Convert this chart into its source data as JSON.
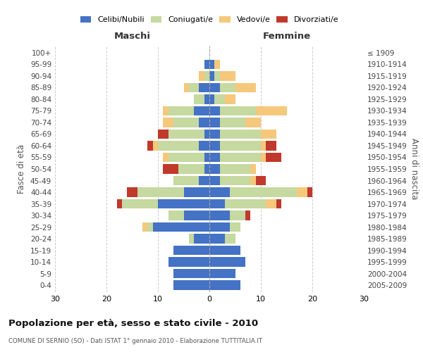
{
  "age_groups": [
    "0-4",
    "5-9",
    "10-14",
    "15-19",
    "20-24",
    "25-29",
    "30-34",
    "35-39",
    "40-44",
    "45-49",
    "50-54",
    "55-59",
    "60-64",
    "65-69",
    "70-74",
    "75-79",
    "80-84",
    "85-89",
    "90-94",
    "95-99",
    "100+"
  ],
  "birth_years": [
    "2005-2009",
    "2000-2004",
    "1995-1999",
    "1990-1994",
    "1985-1989",
    "1980-1984",
    "1975-1979",
    "1970-1974",
    "1965-1969",
    "1960-1964",
    "1955-1959",
    "1950-1954",
    "1945-1949",
    "1940-1944",
    "1935-1939",
    "1930-1934",
    "1925-1929",
    "1920-1924",
    "1915-1919",
    "1910-1914",
    "≤ 1909"
  ],
  "male_celibe": [
    7,
    7,
    8,
    7,
    3,
    11,
    5,
    10,
    5,
    2,
    1,
    1,
    2,
    1,
    2,
    3,
    1,
    2,
    0,
    1,
    0
  ],
  "male_coniugato": [
    0,
    0,
    0,
    0,
    1,
    1,
    3,
    7,
    9,
    5,
    5,
    7,
    8,
    7,
    5,
    5,
    2,
    2,
    1,
    0,
    0
  ],
  "male_vedovo": [
    0,
    0,
    0,
    0,
    0,
    1,
    0,
    0,
    0,
    0,
    0,
    1,
    1,
    0,
    2,
    1,
    0,
    1,
    1,
    0,
    0
  ],
  "male_divorziato": [
    0,
    0,
    0,
    0,
    0,
    0,
    0,
    1,
    2,
    0,
    3,
    0,
    1,
    2,
    0,
    0,
    0,
    0,
    0,
    0,
    0
  ],
  "female_celibe": [
    6,
    5,
    7,
    6,
    3,
    4,
    4,
    3,
    4,
    2,
    2,
    2,
    2,
    2,
    2,
    2,
    1,
    2,
    1,
    1,
    0
  ],
  "female_coniugato": [
    0,
    0,
    0,
    0,
    2,
    2,
    3,
    8,
    13,
    6,
    6,
    8,
    8,
    8,
    5,
    7,
    2,
    3,
    1,
    0,
    0
  ],
  "female_vedovo": [
    0,
    0,
    0,
    0,
    0,
    0,
    0,
    2,
    2,
    1,
    1,
    1,
    1,
    3,
    3,
    6,
    2,
    4,
    3,
    1,
    0
  ],
  "female_divorziato": [
    0,
    0,
    0,
    0,
    0,
    0,
    1,
    1,
    1,
    2,
    0,
    3,
    2,
    0,
    0,
    0,
    0,
    0,
    0,
    0,
    0
  ],
  "color_celibe": "#4472c4",
  "color_coniugato": "#c5d9a0",
  "color_vedovo": "#f5c87c",
  "color_divorziato": "#c0392b",
  "title": "Popolazione per età, sesso e stato civile - 2010",
  "subtitle": "COMUNE DI SERNIO (SO) - Dati ISTAT 1° gennaio 2010 - Elaborazione TUTTITALIA.IT",
  "xlabel_left": "Maschi",
  "xlabel_right": "Femmine",
  "ylabel_left": "Fasce di età",
  "ylabel_right": "Anni di nascita",
  "xlim": 30,
  "bg_color": "#ffffff",
  "grid_color": "#cccccc"
}
